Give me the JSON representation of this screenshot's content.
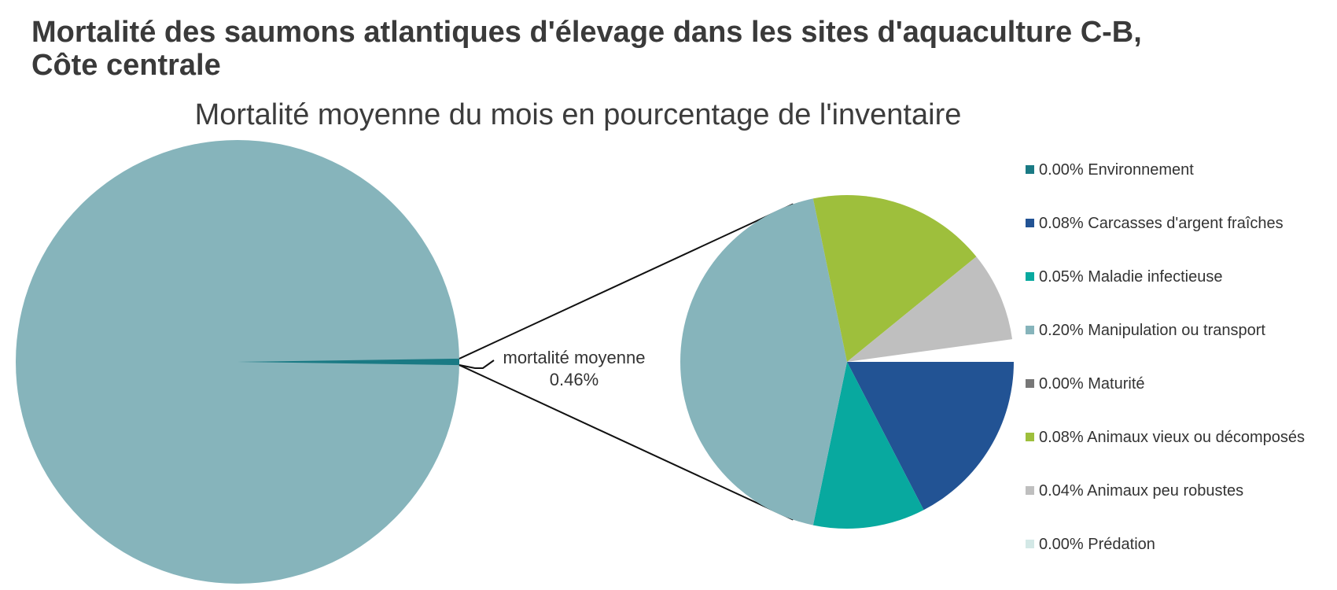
{
  "header": {
    "title_line1": "Mortalité des saumons atlantiques d'élevage dans les sites d'aquaculture C-B,",
    "title_line2": "Côte centrale"
  },
  "chart_data": {
    "type": "pie",
    "subtitle": "Mortalité moyenne du mois en pourcentage de l'inventaire",
    "total_label_line1": "mortalité moyenne",
    "total_label_line2": "0.46%",
    "total_value": 0.46,
    "main_pie_color": "#86b4bb",
    "main_pie_value": 99.54,
    "legend_position": "right",
    "slices": [
      {
        "name": "Environnement",
        "value": 0.0,
        "label": "0.00% Environnement",
        "color": "#1a7a84"
      },
      {
        "name": "Carcasses d'argent fraîches",
        "value": 0.08,
        "label": "0.08% Carcasses d'argent fraîches",
        "color": "#225394"
      },
      {
        "name": "Maladie infectieuse",
        "value": 0.05,
        "label": "0.05% Maladie infectieuse",
        "color": "#08a99f"
      },
      {
        "name": "Manipulation ou transport",
        "value": 0.2,
        "label": "0.20% Manipulation ou transport",
        "color": "#86b4bb"
      },
      {
        "name": "Maturité",
        "value": 0.0,
        "label": "0.00% Maturité",
        "color": "#777777"
      },
      {
        "name": "Animaux vieux ou décomposés",
        "value": 0.08,
        "label": "0.08% Animaux vieux ou décomposés",
        "color": "#9ebf3c"
      },
      {
        "name": "Animaux peu robustes",
        "value": 0.04,
        "label": "0.04% Animaux peu robustes",
        "color": "#bfbfbf"
      },
      {
        "name": "Prédation",
        "value": 0.0,
        "label": "0.00% Prédation",
        "color": "#d3e8e6"
      }
    ]
  }
}
